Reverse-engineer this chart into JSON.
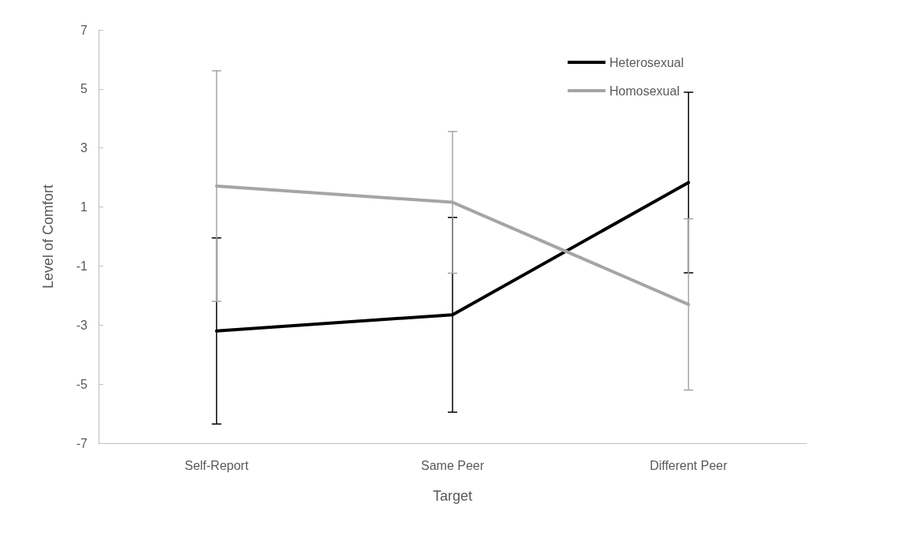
{
  "chart_data": {
    "type": "line",
    "xlabel": "Target",
    "ylabel": "Level of Comfort",
    "categories": [
      "Self-Report",
      "Same Peer",
      "Different Peer"
    ],
    "series": [
      {
        "name": "Heterosexual",
        "color": "#000000",
        "values": [
          -3.2,
          -2.65,
          1.83
        ],
        "errors": [
          3.15,
          3.3,
          3.06
        ]
      },
      {
        "name": "Homosexual",
        "color": "#a5a5a5",
        "values": [
          1.71,
          1.16,
          -2.3
        ],
        "errors": [
          3.91,
          2.4,
          2.9
        ]
      }
    ],
    "ylim": [
      -7,
      7
    ],
    "yticks": [
      -7,
      -5,
      -3,
      -1,
      1,
      3,
      5,
      7
    ],
    "grid": false,
    "legend": "top right",
    "marker": "none",
    "line_style": "solid"
  }
}
